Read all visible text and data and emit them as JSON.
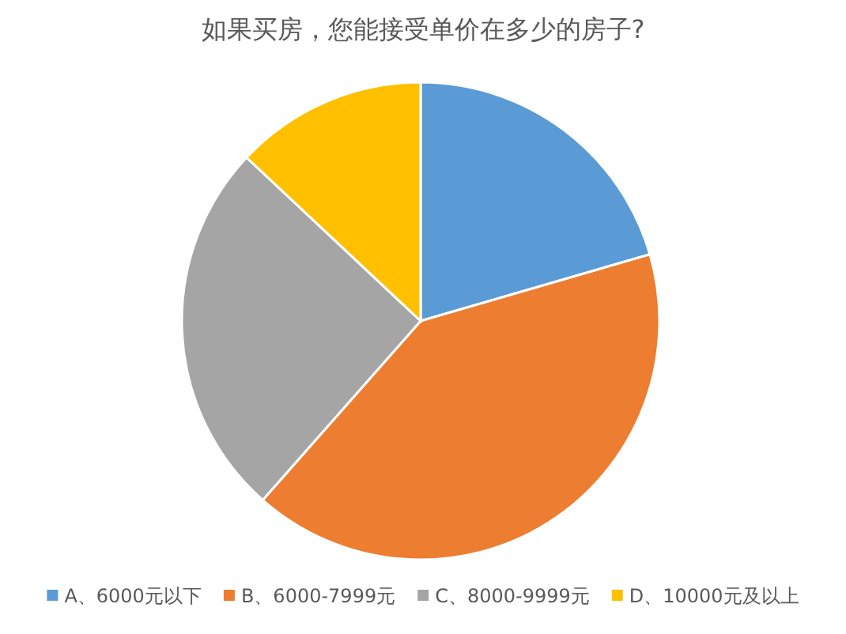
{
  "chart_data": {
    "type": "pie",
    "title": "如果买房，您能接受单价在多少的房子?",
    "categories": [
      "A、6000元以下",
      "B、6000-7999元",
      "C、8000-9999元",
      "D、10000元及以上"
    ],
    "values": [
      20.5,
      41,
      25.5,
      13
    ],
    "colors": [
      "#5b9bd5",
      "#ed7d31",
      "#a5a5a5",
      "#ffc000"
    ],
    "legend": "bottom"
  }
}
